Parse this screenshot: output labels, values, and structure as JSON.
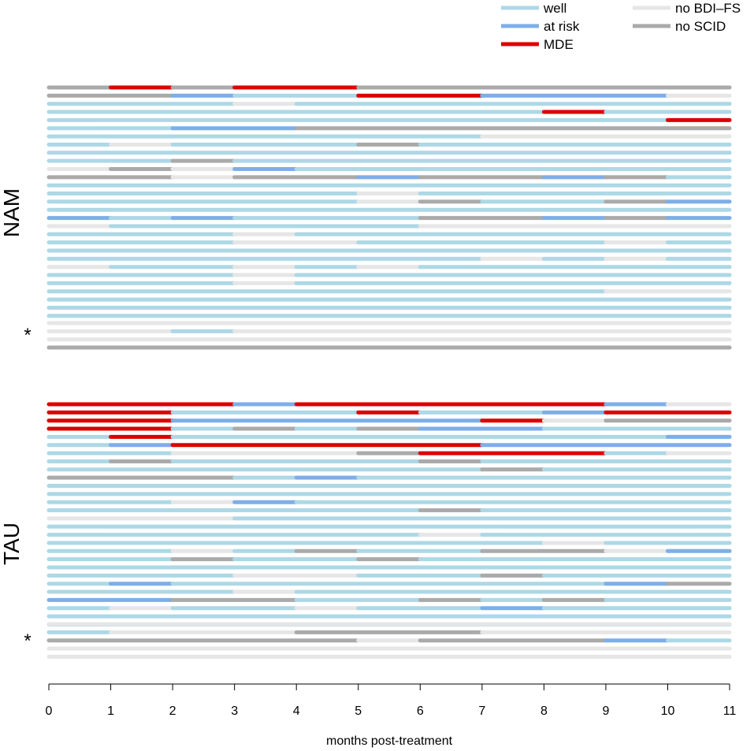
{
  "chart_data": {
    "type": "timeline",
    "xlabel": "months post-treatment",
    "xlim": [
      0,
      11
    ],
    "x_ticks": [
      0,
      1,
      2,
      3,
      4,
      5,
      6,
      7,
      8,
      9,
      10,
      11
    ],
    "states": [
      {
        "key": "W",
        "label": "well",
        "color": "#add8e6"
      },
      {
        "key": "R",
        "label": "at risk",
        "color": "#7eaee8"
      },
      {
        "key": "M",
        "label": "MDE",
        "color": "#dd0000"
      },
      {
        "key": "B",
        "label": "no BDI–FS",
        "color": "#e6e6e6"
      },
      {
        "key": "S",
        "label": "no SCID",
        "color": "#aaaaaa"
      }
    ],
    "groups": [
      {
        "label": "NAM",
        "rows": [
          "SMSMMSSSSSS",
          "SSRWWMMRRRB",
          "WWWBWWWWWWW",
          "WWWWWWWWMWW",
          "WWWWWWWWWWM",
          "WWRRSSSSSSS",
          "WWWWWWWBBBB",
          "WBWWWSWWWWW",
          "WWWWWWWWWWW",
          "WWSWWWWWWWW",
          "BSBRWWWWWWW",
          "SSBSSRSSRSW",
          "WWWWWWWWWWW",
          "WWWWWBWWWWW",
          "WWWWWBSWWSR",
          "WWWWWWWWWWW",
          "RWRWWWSSRSR",
          "BWWWWWBBBBB",
          "WWWBWWWWWWW",
          "WWWBBWWWWBW",
          "WWWWWWWWWWW",
          "WWWWWWWBWBW",
          "BWWBWBWWWWW",
          "WWWBWWWWWWW",
          "WWWBWWWWWWW",
          "WWWWWWWWWBB",
          "WWWWWWWWWWW",
          "WWWWWWWWWWW",
          "WWWWWWWWWWW"
        ],
        "starred_rows": [
          "BBBBBBBBBBB",
          "BBWBBBBBBBB",
          "BBBBBBBBBBB",
          "SSSSSSSSSSS"
        ]
      },
      {
        "label": "TAU",
        "rows": [
          "MMMRMMMMMRB",
          "MMWWWMWWRMM",
          "MMRRRRRMBSS",
          "MMWSWSRRWWW",
          "WMWWWWWWWWR",
          "WRMMMMMRRRR",
          "WWBBBSMMMWB",
          "WSWWWWSWWWW",
          "WWWWWWWSWWW",
          "SSSWRWWWWWW",
          "WWWWWWWWWWW",
          "WWWWWWWWWWW",
          "WWBRWWWWWWW",
          "WWWWWWSWWWW",
          "BBBWWWWWWWW",
          "WWWWWWWWWWW",
          "WWWWWWBWWWW",
          "WWWWWWWWBWW",
          "WWBWSWWSSBR",
          "WWSWWSWWWWW",
          "WWWWWWWWWWW",
          "WWWBBWWSWWW",
          "WRWWWWWWWRS",
          "WWWBWWWWWWW",
          "RRSSWWSWSWW",
          "WBWWBWWRWWW",
          "WWWWWWWWWWW",
          "WWWWWWWWWWW"
        ],
        "starred_rows": [
          "BBBBBBBBBBB",
          "WBBBSSSBBBB",
          "SSSSSBSSSRW",
          "BBBBBBBBBBB",
          "BBBBBBBBBBB"
        ]
      }
    ],
    "star_label": "*"
  }
}
